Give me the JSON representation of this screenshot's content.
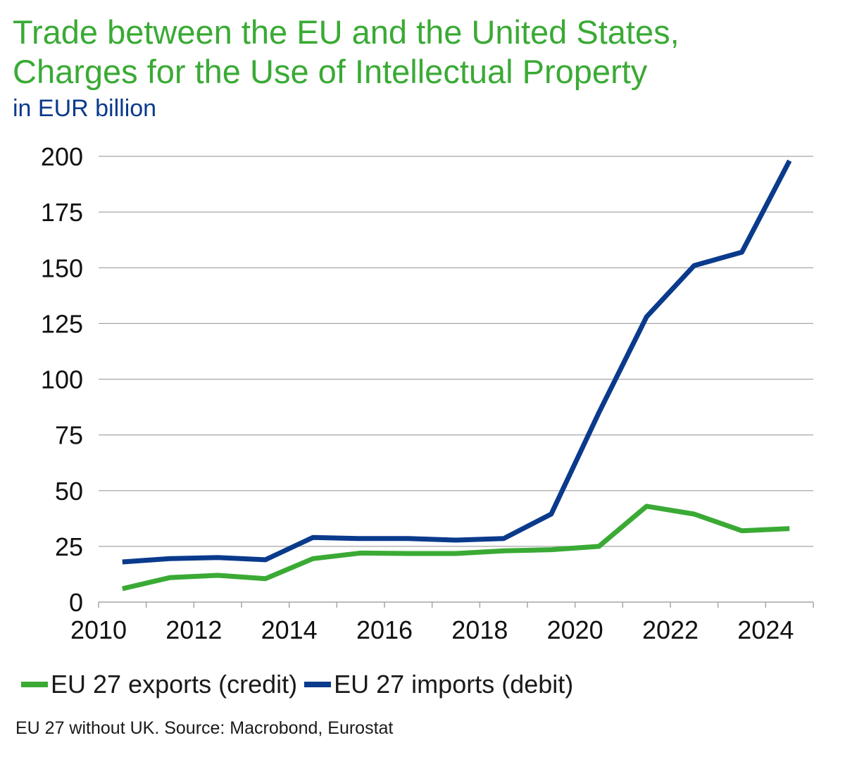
{
  "header": {
    "title_line1": "Trade between the EU and the United States,",
    "title_line2": "Charges for the Use of Intellectual Property",
    "subtitle": "in EUR billion"
  },
  "footer": {
    "source": "EU 27 without UK. Source: Macrobond, Eurostat"
  },
  "colors": {
    "title": "#3aaa35",
    "subtitle": "#0a3a8c",
    "exports": "#3aaa35",
    "imports": "#0a3a8c",
    "grid": "#a6a6a6"
  },
  "chart_data": {
    "type": "line",
    "title": "Trade between the EU and the United States, Charges for the Use of Intellectual Property",
    "subtitle": "in EUR billion",
    "xlabel": "",
    "ylabel": "",
    "xlim": [
      2010,
      2025
    ],
    "ylim": [
      0,
      200
    ],
    "yticks": [
      0,
      25,
      50,
      75,
      100,
      125,
      150,
      175,
      200
    ],
    "xticks": [
      2010,
      2012,
      2014,
      2016,
      2018,
      2020,
      2022,
      2024
    ],
    "grid": true,
    "legend": "bottom",
    "x": [
      2010.5,
      2011.5,
      2012.5,
      2013.5,
      2014.5,
      2015.5,
      2016.5,
      2017.5,
      2018.5,
      2019.5,
      2020.5,
      2021.5,
      2022.5,
      2023.5,
      2024.5
    ],
    "series": [
      {
        "name": "EU 27 exports (credit)",
        "color": "#3aaa35",
        "values": [
          6,
          11,
          12,
          10.5,
          19.5,
          22,
          21.8,
          21.8,
          23,
          23.5,
          25,
          43,
          39.5,
          32,
          33
        ]
      },
      {
        "name": "EU 27 imports (debit)",
        "color": "#0a3a8c",
        "values": [
          18,
          19.5,
          20,
          19,
          29,
          28.5,
          28.5,
          27.8,
          28.5,
          39.5,
          85,
          128,
          151,
          157,
          198
        ]
      }
    ]
  }
}
